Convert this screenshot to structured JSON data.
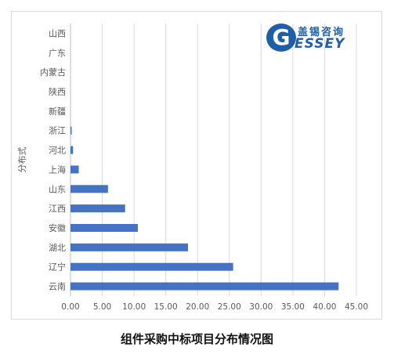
{
  "caption": "组件采购中标项目分布情况图",
  "logo": {
    "letter": "G",
    "chinese": "盖锡咨询",
    "english": "ESSEY"
  },
  "chart_data": {
    "type": "bar",
    "orientation": "horizontal",
    "ylabel": "分布式",
    "xlabel": "",
    "categories": [
      "山西",
      "广东",
      "内蒙古",
      "陕西",
      "新疆",
      "浙江",
      "河北",
      "上海",
      "山东",
      "江西",
      "安徽",
      "湖北",
      "辽宁",
      "云南"
    ],
    "values": [
      0,
      0,
      0,
      0,
      0,
      0.1,
      0.4,
      1.3,
      5.9,
      8.6,
      10.6,
      18.5,
      25.6,
      42.2
    ],
    "xlim": [
      0,
      45
    ],
    "xticks": [
      "0.00",
      "5.00",
      "10.00",
      "15.00",
      "20.00",
      "25.00",
      "30.00",
      "35.00",
      "40.00",
      "45.00"
    ],
    "grid": true,
    "bar_color": "#4472c4",
    "grid_color": "#d9d9d9"
  }
}
